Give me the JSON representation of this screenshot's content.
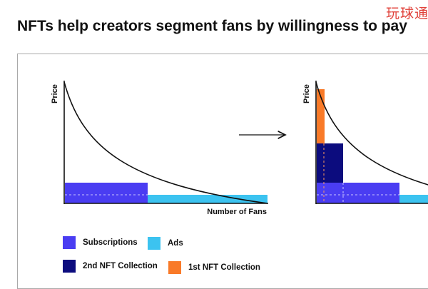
{
  "watermark": "玩球通",
  "title": "NFTs help creators segment fans by willingness to pay",
  "colors": {
    "subscriptions": "#4a3df2",
    "ads": "#3cc3f0",
    "nft2": "#0c0c7e",
    "nft1": "#f97a28"
  },
  "left_chart": {
    "ylabel": "Price",
    "xlabel": "Number of Fans"
  },
  "right_chart": {
    "ylabel": "Price"
  },
  "legend": [
    {
      "key": "subscriptions",
      "label": "Subscriptions"
    },
    {
      "key": "ads",
      "label": "Ads"
    },
    {
      "key": "nft2",
      "label": "2nd NFT Collection"
    },
    {
      "key": "nft1",
      "label": "1st NFT Collection"
    }
  ]
}
